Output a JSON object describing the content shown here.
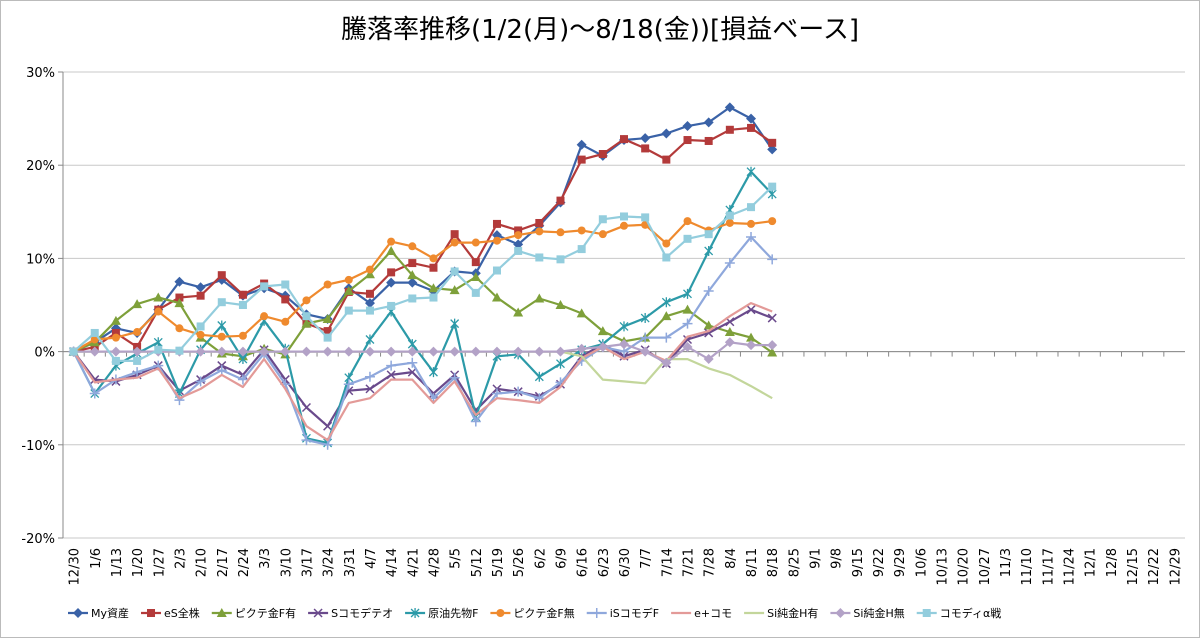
{
  "chart_data": {
    "type": "line",
    "title": "騰落率推移(1/2(月)～8/18(金))[損益ベース]",
    "categories": [
      "12/30",
      "1/6",
      "1/13",
      "1/20",
      "1/27",
      "2/3",
      "2/10",
      "2/17",
      "2/24",
      "3/3",
      "3/10",
      "3/17",
      "3/24",
      "3/31",
      "4/7",
      "4/14",
      "4/21",
      "4/28",
      "5/5",
      "5/12",
      "5/19",
      "5/26",
      "6/2",
      "6/9",
      "6/16",
      "6/23",
      "6/30",
      "7/7",
      "7/14",
      "7/21",
      "7/28",
      "8/4",
      "8/11",
      "8/18",
      "8/25",
      "9/1",
      "9/8",
      "9/15",
      "9/22",
      "9/29",
      "10/6",
      "10/13",
      "10/20",
      "10/27",
      "11/3",
      "11/10",
      "11/17",
      "11/24",
      "12/1",
      "12/8",
      "12/15",
      "12/22",
      "12/29"
    ],
    "ylim": [
      -20,
      30
    ],
    "yticks": [
      {
        "value": -20,
        "label": "-20%"
      },
      {
        "value": -10,
        "label": "-10%"
      },
      {
        "value": 0,
        "label": "0%"
      },
      {
        "value": 10,
        "label": "10%"
      },
      {
        "value": 20,
        "label": "20%"
      },
      {
        "value": 30,
        "label": "30%"
      }
    ],
    "grid": true,
    "legend": "bottom",
    "series": [
      {
        "name": "My資産",
        "color": "#3a62a7",
        "marker": "diamond",
        "values": [
          0,
          1.0,
          2.5,
          2.0,
          4.5,
          7.5,
          6.9,
          7.7,
          6.0,
          6.8,
          6.0,
          4.0,
          3.5,
          6.8,
          5.2,
          7.4,
          7.4,
          6.5,
          8.6,
          8.4,
          12.5,
          11.5,
          13.5,
          16.0,
          22.2,
          21.0,
          22.7,
          22.9,
          23.4,
          24.2,
          24.6,
          26.2,
          25.0,
          21.7,
          null,
          null,
          null,
          null,
          null,
          null,
          null,
          null,
          null,
          null,
          null,
          null,
          null,
          null,
          null,
          null,
          null,
          null,
          null
        ]
      },
      {
        "name": "eS全株",
        "color": "#b33a3a",
        "marker": "square",
        "values": [
          0,
          0.5,
          2.0,
          0.5,
          4.5,
          5.8,
          6.0,
          8.2,
          6.1,
          7.3,
          5.6,
          3.0,
          2.2,
          6.4,
          6.2,
          8.5,
          9.5,
          9.0,
          12.6,
          9.6,
          13.7,
          13.0,
          13.8,
          16.2,
          20.6,
          21.2,
          22.8,
          21.8,
          20.6,
          22.7,
          22.6,
          23.8,
          24.0,
          22.4,
          null,
          null,
          null,
          null,
          null,
          null,
          null,
          null,
          null,
          null,
          null,
          null,
          null,
          null,
          null,
          null,
          null,
          null,
          null
        ]
      },
      {
        "name": "ピクテ金F有",
        "color": "#7ea03a",
        "marker": "triangle",
        "values": [
          0,
          1.0,
          3.3,
          5.1,
          5.8,
          5.2,
          1.5,
          -0.2,
          -0.5,
          0.3,
          -0.3,
          3.0,
          3.5,
          6.5,
          8.3,
          10.8,
          8.2,
          6.8,
          6.6,
          8.0,
          5.8,
          4.2,
          5.7,
          5.0,
          4.1,
          2.2,
          1.1,
          1.5,
          3.8,
          4.5,
          2.8,
          2.1,
          1.5,
          -0.1,
          null,
          null,
          null,
          null,
          null,
          null,
          null,
          null,
          null,
          null,
          null,
          null,
          null,
          null,
          null,
          null,
          null,
          null,
          null
        ]
      },
      {
        "name": "Sコモデテオ",
        "color": "#6a4a8c",
        "marker": "x",
        "values": [
          0,
          -3.0,
          -3.2,
          -2.5,
          -1.5,
          -4.2,
          -3.0,
          -1.5,
          -2.5,
          0.2,
          -3.0,
          -6.0,
          -8.0,
          -4.2,
          -4.0,
          -2.5,
          -2.2,
          -4.5,
          -2.5,
          -6.3,
          -4.0,
          -4.3,
          -4.8,
          -3.5,
          -0.5,
          0.8,
          -0.5,
          0.2,
          -1.3,
          1.3,
          2.0,
          3.2,
          4.5,
          3.6,
          null,
          null,
          null,
          null,
          null,
          null,
          null,
          null,
          null,
          null,
          null,
          null,
          null,
          null,
          null,
          null,
          null,
          null,
          null
        ]
      },
      {
        "name": "原油先物F",
        "color": "#2c9aa8",
        "marker": "star",
        "values": [
          0,
          -4.5,
          -1.5,
          -0.2,
          1.0,
          -4.5,
          0.2,
          2.8,
          -0.8,
          3.3,
          0.3,
          -9.3,
          -9.8,
          -2.8,
          1.3,
          4.3,
          0.8,
          -2.2,
          3.0,
          -7.0,
          -0.5,
          -0.3,
          -2.7,
          -1.3,
          0.2,
          0.8,
          2.7,
          3.6,
          5.3,
          6.2,
          10.8,
          15.2,
          19.3,
          16.9,
          null,
          null,
          null,
          null,
          null,
          null,
          null,
          null,
          null,
          null,
          null,
          null,
          null,
          null,
          null,
          null,
          null,
          null,
          null
        ]
      },
      {
        "name": "ピクテ金F無",
        "color": "#ef8a2e",
        "marker": "circle",
        "values": [
          0,
          1.3,
          1.5,
          2.1,
          4.3,
          2.5,
          1.8,
          1.6,
          1.7,
          3.8,
          3.2,
          5.5,
          7.2,
          7.7,
          8.8,
          11.8,
          11.3,
          10.0,
          11.7,
          11.7,
          11.9,
          12.5,
          12.9,
          12.8,
          13.0,
          12.6,
          13.5,
          13.6,
          11.6,
          14.0,
          13.0,
          13.8,
          13.7,
          14.0,
          null,
          null,
          null,
          null,
          null,
          null,
          null,
          null,
          null,
          null,
          null,
          null,
          null,
          null,
          null,
          null,
          null,
          null,
          null
        ]
      },
      {
        "name": "iSコモデF",
        "color": "#8fa8dc",
        "marker": "plus",
        "values": [
          0,
          -4.5,
          -3.0,
          -2.2,
          -1.5,
          -5.2,
          -3.2,
          -2.0,
          -3.0,
          -0.2,
          -3.5,
          -9.5,
          -10.0,
          -3.5,
          -2.7,
          -1.5,
          -1.2,
          -5.0,
          -2.8,
          -7.5,
          -4.5,
          -4.3,
          -5.0,
          -3.3,
          -1.0,
          0.5,
          0.0,
          1.5,
          1.5,
          3.0,
          6.5,
          9.5,
          12.3,
          9.9,
          null,
          null,
          null,
          null,
          null,
          null,
          null,
          null,
          null,
          null,
          null,
          null,
          null,
          null,
          null,
          null,
          null,
          null,
          null
        ]
      },
      {
        "name": "e+コモ",
        "color": "#e39a98",
        "marker": "none",
        "values": [
          0,
          -3.3,
          -3.0,
          -2.8,
          -1.8,
          -5.0,
          -4.0,
          -2.5,
          -3.8,
          -0.8,
          -4.0,
          -8.0,
          -9.5,
          -5.5,
          -5.0,
          -3.0,
          -3.0,
          -5.5,
          -3.2,
          -6.8,
          -5.0,
          -5.2,
          -5.5,
          -3.8,
          -0.7,
          0.5,
          -0.8,
          0.0,
          -1.0,
          1.6,
          2.2,
          3.8,
          5.2,
          4.3,
          null,
          null,
          null,
          null,
          null,
          null,
          null,
          null,
          null,
          null,
          null,
          null,
          null,
          null,
          null,
          null,
          null,
          null,
          null
        ]
      },
      {
        "name": "Si純金H有",
        "color": "#c3d69b",
        "marker": "none",
        "values": [
          0,
          0,
          0,
          0,
          0,
          0,
          0,
          0,
          0,
          0,
          0,
          0,
          0,
          0,
          0,
          0,
          0,
          0,
          0,
          0,
          0,
          0,
          0,
          0,
          -0.5,
          -3.0,
          -3.2,
          -3.4,
          -0.8,
          -0.8,
          -1.8,
          -2.5,
          -3.7,
          -5.0,
          null,
          null,
          null,
          null,
          null,
          null,
          null,
          null,
          null,
          null,
          null,
          null,
          null,
          null,
          null,
          null,
          null,
          null,
          null
        ]
      },
      {
        "name": "Si純金H無",
        "color": "#b3a2c7",
        "marker": "diamond",
        "values": [
          0,
          0,
          0,
          0,
          0,
          0,
          0,
          0,
          0,
          0,
          0,
          0,
          0,
          0,
          0,
          0,
          0,
          0,
          0,
          0,
          0,
          0,
          0,
          0,
          0.3,
          0.5,
          0.8,
          0.0,
          -1.2,
          0.5,
          -0.8,
          1.0,
          0.7,
          0.7,
          null,
          null,
          null,
          null,
          null,
          null,
          null,
          null,
          null,
          null,
          null,
          null,
          null,
          null,
          null,
          null,
          null,
          null,
          null
        ]
      },
      {
        "name": "コモディα戦",
        "color": "#93cddd",
        "marker": "square",
        "values": [
          0,
          2.0,
          -1.0,
          -1.0,
          0.2,
          0.1,
          2.7,
          5.3,
          5.0,
          7.0,
          7.2,
          3.8,
          1.5,
          4.4,
          4.4,
          4.9,
          5.7,
          5.8,
          8.6,
          6.3,
          8.7,
          10.8,
          10.1,
          9.9,
          11.0,
          14.2,
          14.5,
          14.4,
          10.1,
          12.1,
          12.6,
          14.6,
          15.5,
          17.7,
          null,
          null,
          null,
          null,
          null,
          null,
          null,
          null,
          null,
          null,
          null,
          null,
          null,
          null,
          null,
          null,
          null,
          null,
          null
        ]
      }
    ]
  }
}
